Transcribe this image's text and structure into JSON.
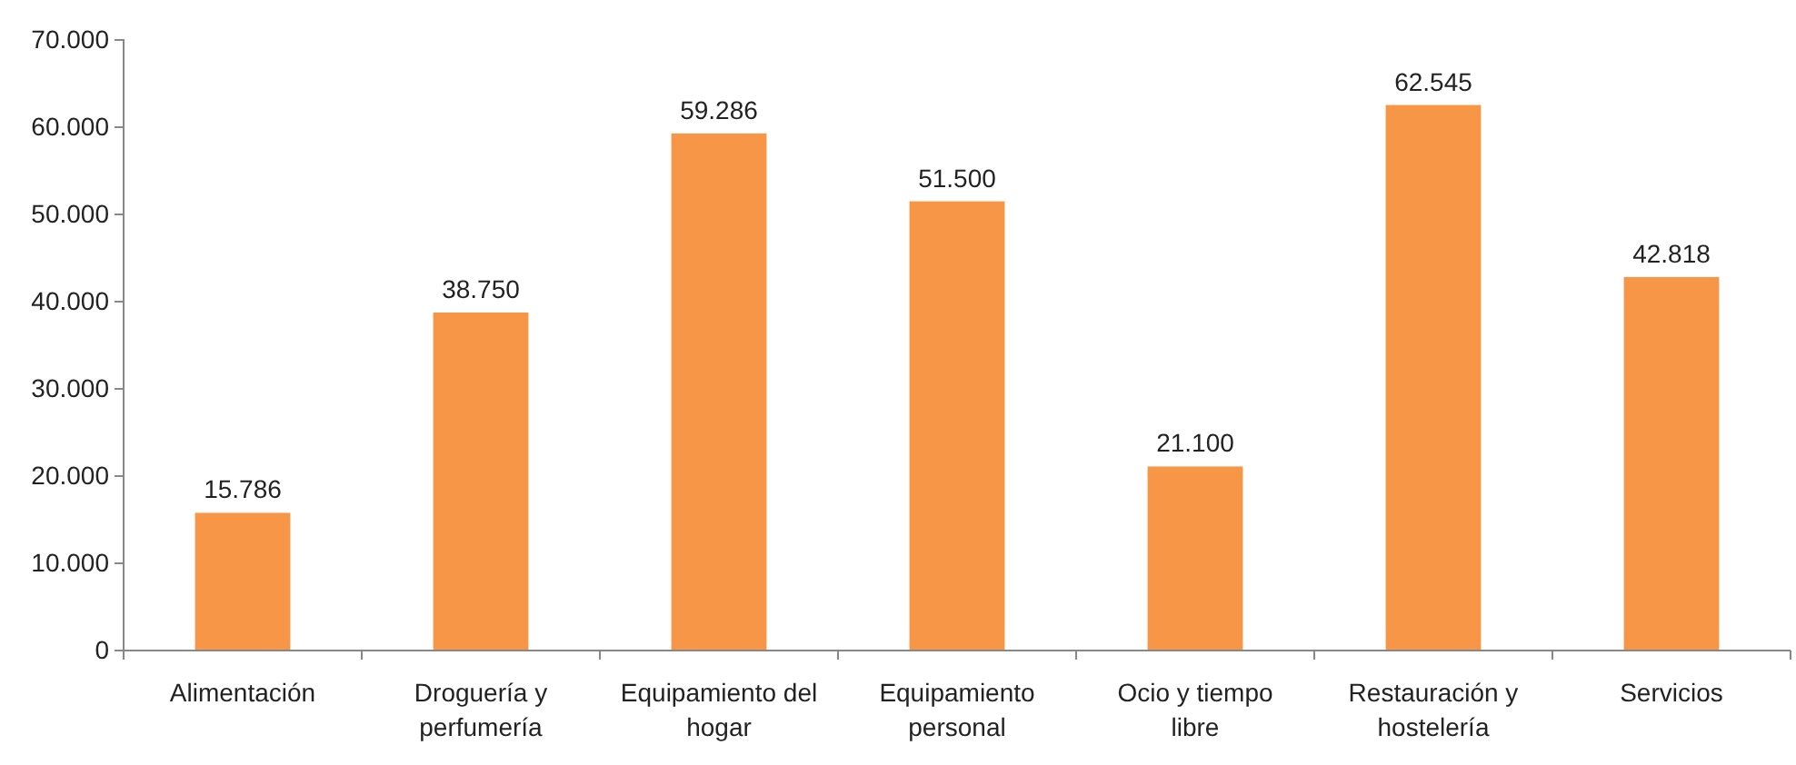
{
  "chart_data": {
    "type": "bar",
    "categories": [
      "Alimentación",
      "Droguería y perfumería",
      "Equipamiento del hogar",
      "Equipamiento personal",
      "Ocio y tiempo libre",
      "Restauración y hostelería",
      "Servicios"
    ],
    "values": [
      15786,
      38750,
      59286,
      51500,
      21100,
      62545,
      42818
    ],
    "value_labels": [
      "15.786",
      "38.750",
      "59.286",
      "51.500",
      "21.100",
      "62.545",
      "42.818"
    ],
    "color": "#f79646",
    "ylim": [
      0,
      70000
    ],
    "yticks": [
      0,
      {
        "value": 10000,
        "label": "10.000"
      },
      {
        "value": 20000,
        "label": "20.000"
      },
      {
        "value": 30000,
        "label": "30.000"
      },
      {
        "value": 40000,
        "label": "40.000"
      },
      {
        "value": 50000,
        "label": "50.000"
      },
      {
        "value": 60000,
        "label": "60.000"
      },
      {
        "value": 70000,
        "label": "70.000"
      }
    ],
    "grid": false
  }
}
